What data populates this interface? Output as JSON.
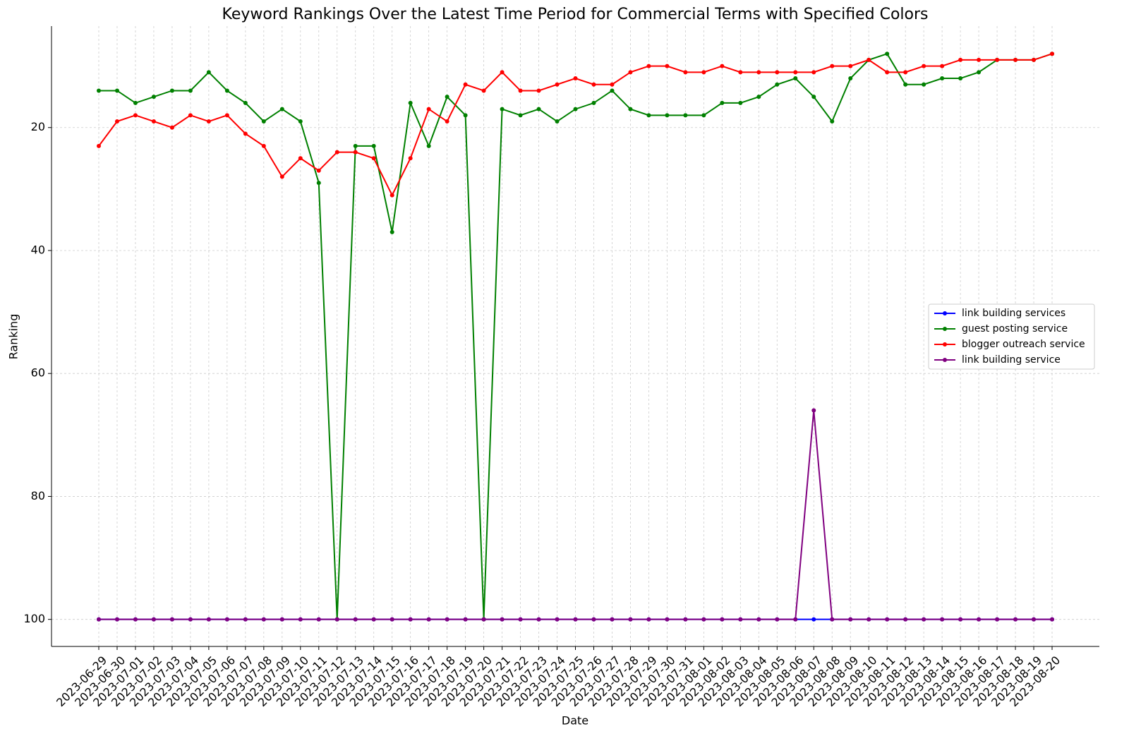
{
  "chart_data": {
    "type": "line",
    "title": "Keyword Rankings Over the Latest Time Period for Commercial Terms with Specified Colors",
    "x_label": "Date",
    "y_label": "Ranking",
    "categories": [
      "2023-06-29",
      "2023-06-30",
      "2023-07-01",
      "2023-07-02",
      "2023-07-03",
      "2023-07-04",
      "2023-07-05",
      "2023-07-06",
      "2023-07-07",
      "2023-07-08",
      "2023-07-09",
      "2023-07-10",
      "2023-07-11",
      "2023-07-12",
      "2023-07-13",
      "2023-07-14",
      "2023-07-15",
      "2023-07-16",
      "2023-07-17",
      "2023-07-18",
      "2023-07-19",
      "2023-07-20",
      "2023-07-21",
      "2023-07-22",
      "2023-07-23",
      "2023-07-24",
      "2023-07-25",
      "2023-07-26",
      "2023-07-27",
      "2023-07-28",
      "2023-07-29",
      "2023-07-30",
      "2023-07-31",
      "2023-08-01",
      "2023-08-02",
      "2023-08-03",
      "2023-08-04",
      "2023-08-05",
      "2023-08-06",
      "2023-08-07",
      "2023-08-08",
      "2023-08-09",
      "2023-08-10",
      "2023-08-11",
      "2023-08-12",
      "2023-08-13",
      "2023-08-14",
      "2023-08-15",
      "2023-08-16",
      "2023-08-17",
      "2023-08-18",
      "2023-08-19",
      "2023-08-20"
    ],
    "series": [
      {
        "name": "link building services",
        "color": "#0000ff",
        "values": [
          100,
          100,
          100,
          100,
          100,
          100,
          100,
          100,
          100,
          100,
          100,
          100,
          100,
          100,
          100,
          100,
          100,
          100,
          100,
          100,
          100,
          100,
          100,
          100,
          100,
          100,
          100,
          100,
          100,
          100,
          100,
          100,
          100,
          100,
          100,
          100,
          100,
          100,
          100,
          100,
          100,
          100,
          100,
          100,
          100,
          100,
          100,
          100,
          100,
          100,
          100,
          100,
          100
        ]
      },
      {
        "name": "guest posting service",
        "color": "#008000",
        "values": [
          14,
          14,
          16,
          15,
          14,
          14,
          11,
          14,
          16,
          19,
          17,
          19,
          29,
          100,
          23,
          23,
          37,
          16,
          23,
          15,
          18,
          100,
          17,
          18,
          17,
          19,
          17,
          16,
          14,
          17,
          18,
          18,
          18,
          18,
          16,
          16,
          15,
          13,
          12,
          15,
          19,
          12,
          9,
          8,
          13,
          13,
          12,
          12,
          11,
          9,
          9,
          9,
          8
        ]
      },
      {
        "name": "blogger outreach service",
        "color": "#ff0000",
        "values": [
          23,
          19,
          18,
          19,
          20,
          18,
          19,
          18,
          21,
          23,
          28,
          25,
          27,
          24,
          24,
          25,
          31,
          25,
          17,
          19,
          13,
          14,
          11,
          14,
          14,
          13,
          12,
          13,
          13,
          11,
          10,
          10,
          11,
          11,
          10,
          11,
          11,
          11,
          11,
          11,
          10,
          10,
          9,
          11,
          11,
          10,
          10,
          9,
          9,
          9,
          9,
          9,
          8
        ]
      },
      {
        "name": "link building service",
        "color": "#800080",
        "values": [
          100,
          100,
          100,
          100,
          100,
          100,
          100,
          100,
          100,
          100,
          100,
          100,
          100,
          100,
          100,
          100,
          100,
          100,
          100,
          100,
          100,
          100,
          100,
          100,
          100,
          100,
          100,
          100,
          100,
          100,
          100,
          100,
          100,
          100,
          100,
          100,
          100,
          100,
          100,
          66,
          100,
          100,
          100,
          100,
          100,
          100,
          100,
          100,
          100,
          100,
          100,
          100,
          100
        ]
      }
    ],
    "ylim": [
      104.4,
      3.5
    ],
    "yticks": [
      20,
      40,
      60,
      80,
      100
    ],
    "grid": true,
    "legend": "right"
  }
}
